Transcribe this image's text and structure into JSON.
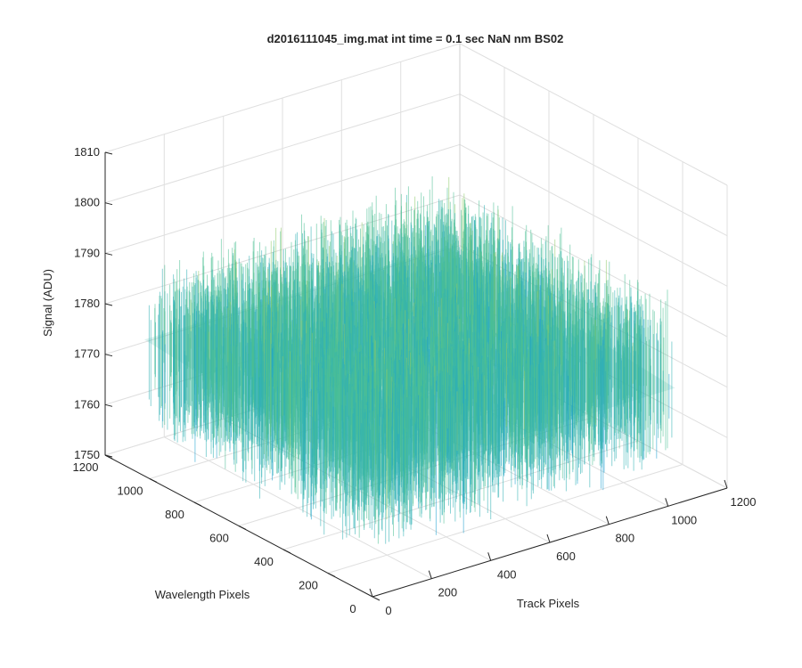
{
  "chart_data": {
    "type": "surface",
    "title": "d2016111045_img.mat int time = 0.1 sec  NaN nm BS02",
    "xlabel": "Track Pixels",
    "ylabel": "Wavelength Pixels",
    "zlabel": "Signal (ADU)",
    "xlim": [
      0,
      1200
    ],
    "ylim": [
      0,
      1200
    ],
    "zlim": [
      1750,
      1810
    ],
    "xticks": [
      "0",
      "200",
      "400",
      "600",
      "800",
      "1000",
      "1200"
    ],
    "yticks": [
      "0",
      "200",
      "400",
      "600",
      "800",
      "1000",
      "1200"
    ],
    "zticks": [
      "1750",
      "1760",
      "1770",
      "1780",
      "1790",
      "1800",
      "1810"
    ],
    "grid": true,
    "surface_extent": {
      "x": [
        0,
        1024
      ],
      "y": [
        0,
        1024
      ]
    },
    "mean_signal": 1775,
    "noise_range": [
      1755,
      1800
    ],
    "colormap": [
      "#0072bd",
      "#1b9fd0",
      "#2fb0b4",
      "#4cbf93",
      "#8ecb6a",
      "#d9c94a"
    ]
  }
}
